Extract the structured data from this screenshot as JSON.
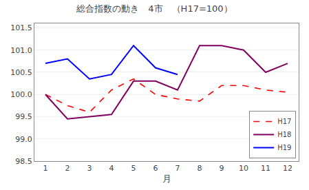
{
  "chart_data": {
    "type": "line",
    "title": "総合指数の動き　4市　（H17=100）",
    "xlabel": "月",
    "x": [
      1,
      2,
      3,
      4,
      5,
      6,
      7,
      8,
      9,
      10,
      11,
      12
    ],
    "series": [
      {
        "name": "H17",
        "color": "#FF0000",
        "line_style": "dashed",
        "values": [
          100.0,
          99.75,
          99.6,
          100.1,
          100.35,
          100.0,
          99.9,
          99.85,
          100.2,
          100.2,
          100.1,
          100.05
        ]
      },
      {
        "name": "H18",
        "color": "#800060",
        "line_style": "solid",
        "values": [
          100.0,
          99.45,
          99.5,
          99.55,
          100.3,
          100.3,
          100.1,
          101.1,
          101.1,
          101.0,
          100.5,
          100.7
        ]
      },
      {
        "name": "H19",
        "color": "#0000FF",
        "line_style": "solid",
        "values": [
          100.7,
          100.8,
          100.35,
          100.45,
          101.1,
          100.6,
          100.45,
          null,
          null,
          null,
          null,
          null
        ]
      }
    ],
    "xlim": [
      0.5,
      12.5
    ],
    "xticks": [
      1,
      2,
      3,
      4,
      5,
      6,
      7,
      8,
      9,
      10,
      11,
      12
    ],
    "ylim": [
      98.5,
      101.6
    ],
    "yticks": [
      98.5,
      {
        "value": 99,
        "label": "99.0"
      },
      99.5,
      {
        "value": 100,
        "label": "100.0"
      },
      100.5,
      {
        "value": 101,
        "label": "101.0"
      },
      101.5
    ],
    "grid": "y",
    "legend": "lower right"
  }
}
